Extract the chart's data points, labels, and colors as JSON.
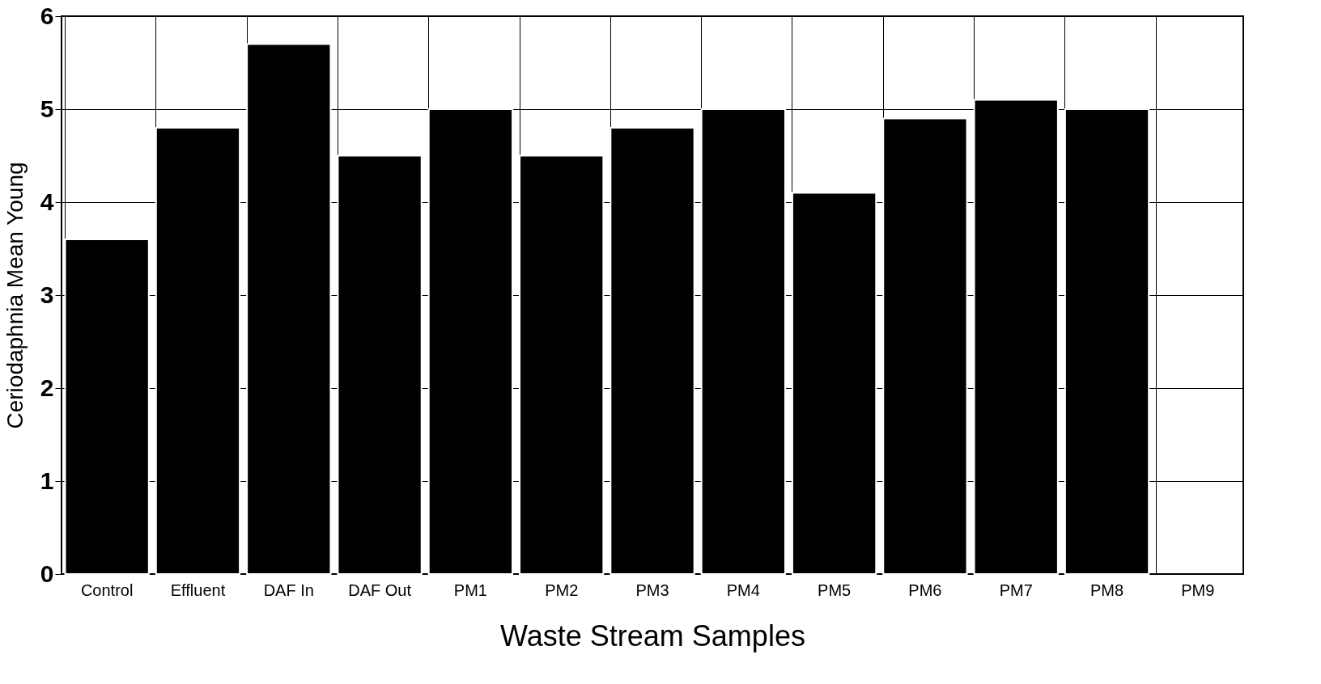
{
  "chart_data": {
    "type": "bar",
    "xlabel": "Waste Stream Samples",
    "ylabel": "Ceriodaphnia Mean Young",
    "categories": [
      "Control",
      "Effluent",
      "DAF In",
      "DAF Out",
      "PM1",
      "PM2",
      "PM3",
      "PM4",
      "PM5",
      "PM6",
      "PM7",
      "PM8",
      "PM9"
    ],
    "values": [
      3.6,
      4.8,
      5.7,
      4.5,
      5.0,
      4.5,
      4.8,
      5.0,
      4.1,
      4.9,
      5.1,
      5.0,
      null
    ],
    "color": "#000000",
    "ylim": [
      0,
      6
    ],
    "yticks": [
      0,
      1,
      2,
      3,
      4,
      5,
      6
    ],
    "grid": true
  }
}
